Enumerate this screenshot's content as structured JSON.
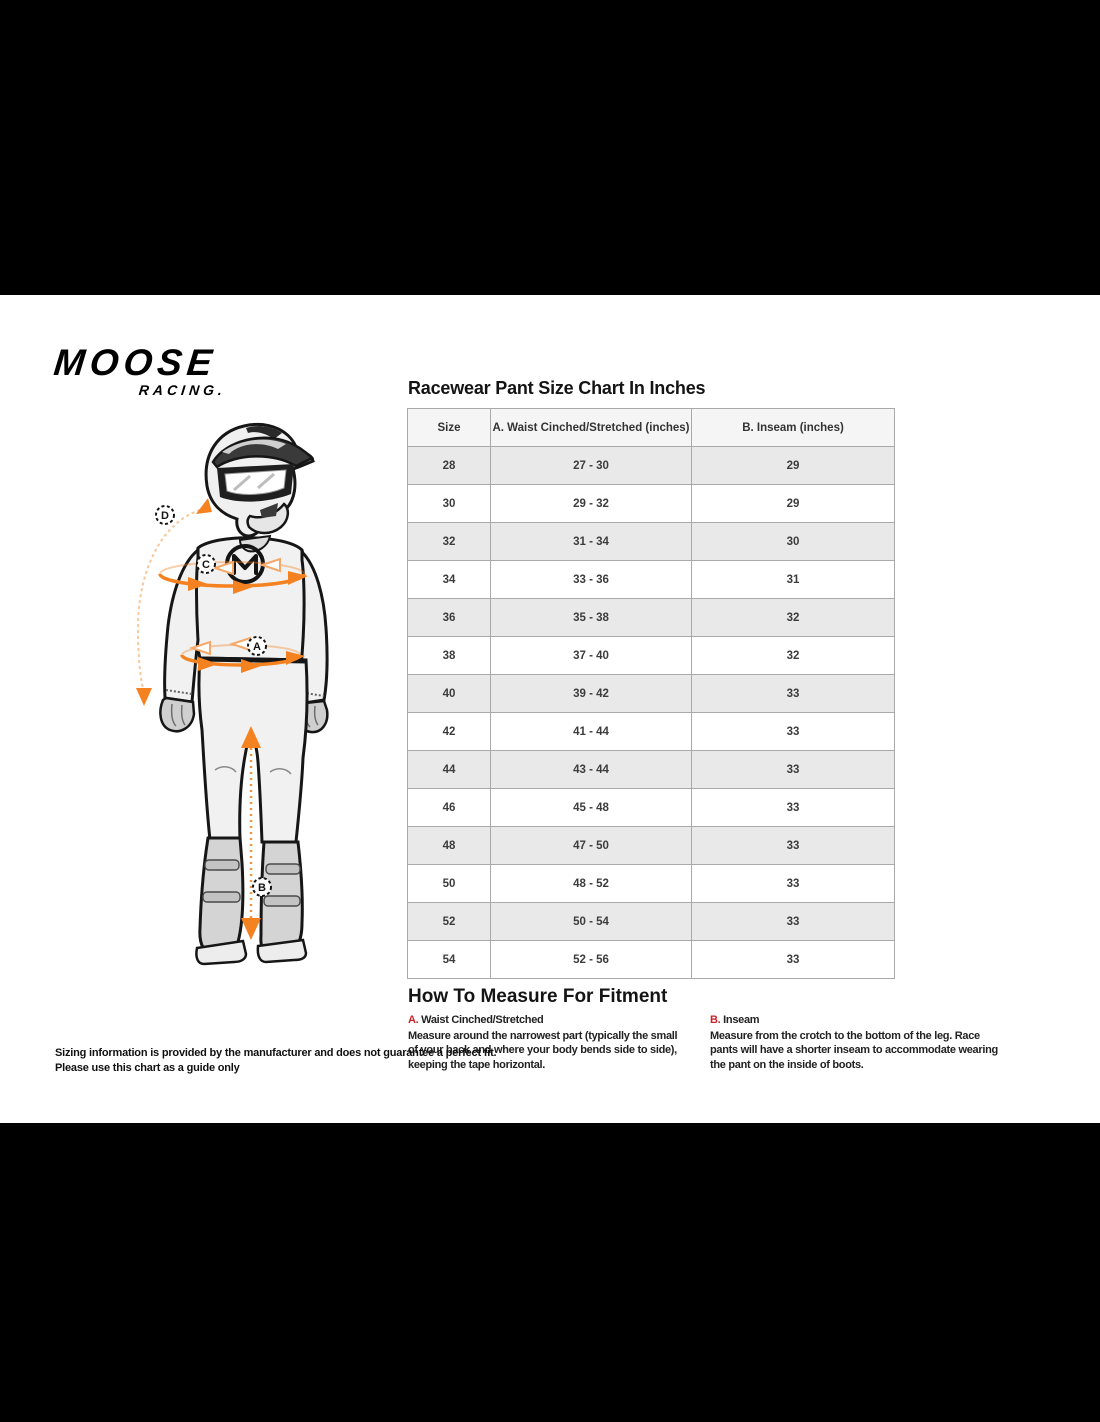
{
  "brand": {
    "logo_primary": "MOOSE",
    "logo_secondary": "RACING."
  },
  "size_chart": {
    "title": "Racewear Pant Size Chart In Inches",
    "columns": [
      "Size",
      "A. Waist Cinched/Stretched (inches)",
      "B. Inseam (inches)"
    ],
    "rows": [
      [
        "28",
        "27 - 30",
        "29"
      ],
      [
        "30",
        "29 - 32",
        "29"
      ],
      [
        "32",
        "31 - 34",
        "30"
      ],
      [
        "34",
        "33 - 36",
        "31"
      ],
      [
        "36",
        "35 - 38",
        "32"
      ],
      [
        "38",
        "37 - 40",
        "32"
      ],
      [
        "40",
        "39 - 42",
        "33"
      ],
      [
        "42",
        "41 - 44",
        "33"
      ],
      [
        "44",
        "43 - 44",
        "33"
      ],
      [
        "46",
        "45 - 48",
        "33"
      ],
      [
        "48",
        "47 - 50",
        "33"
      ],
      [
        "50",
        "48 - 52",
        "33"
      ],
      [
        "52",
        "50 - 54",
        "33"
      ],
      [
        "54",
        "52 - 56",
        "33"
      ]
    ]
  },
  "how_to_measure": {
    "title": "How To Measure For Fitment",
    "items": [
      {
        "letter": "A.",
        "label": "Waist Cinched/Stretched",
        "description": "Measure around the narrowest part (typically the small of your back and where your body bends side to side), keeping the tape horizontal."
      },
      {
        "letter": "B.",
        "label": "Inseam",
        "description": "Measure from the crotch to the bottom of the leg. Race pants will have a shorter inseam to accommodate wearing the pant on the inside of boots."
      }
    ]
  },
  "disclaimer": {
    "line1": "Sizing information is provided by the manufacturer and does not guarantee a perfect fit.",
    "line2": "Please use this chart as a guide only"
  },
  "figure": {
    "description": "Motocross rider measurement diagram",
    "labels": {
      "d": "D",
      "c": "C",
      "a": "A",
      "b": "B"
    }
  },
  "colors": {
    "accent_orange": "#F58220",
    "label_red": "#C8232B",
    "letterbox": "#000000",
    "table_border": "#A9A9A9",
    "table_header_bg": "#F4F5F4",
    "table_alt_row_bg": "#E9E9E9"
  }
}
